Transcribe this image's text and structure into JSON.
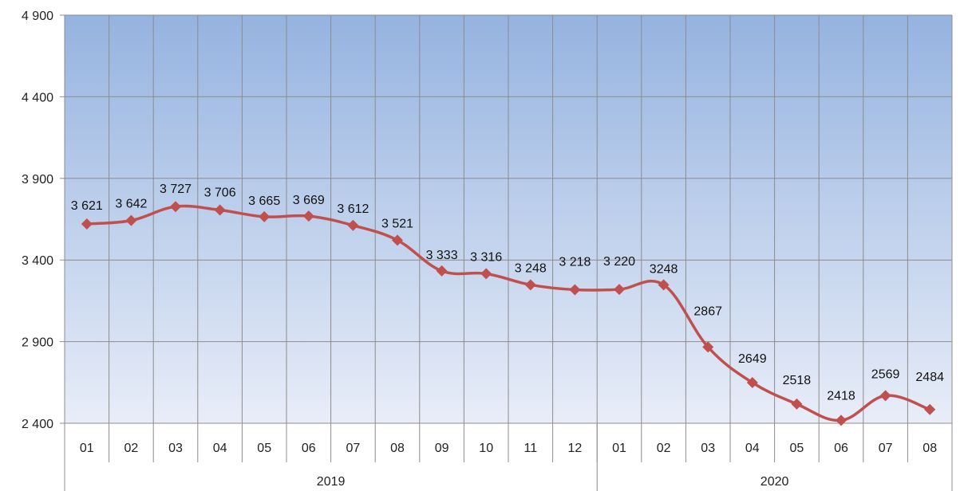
{
  "chart_data": {
    "type": "line",
    "title": "",
    "xlabel": "",
    "ylabel": "",
    "ylim": [
      2400,
      4900
    ],
    "yticks": [
      "2 400",
      "2 900",
      "3 400",
      "3 900",
      "4 400",
      "4 900"
    ],
    "ytick_values": [
      2400,
      2900,
      3400,
      3900,
      4400,
      4900
    ],
    "categories": [
      "01",
      "02",
      "03",
      "04",
      "05",
      "06",
      "07",
      "08",
      "09",
      "10",
      "11",
      "12",
      "01",
      "02",
      "03",
      "04",
      "05",
      "06",
      "07",
      "08"
    ],
    "groups": [
      {
        "label": "2019",
        "count": 12
      },
      {
        "label": "2020",
        "count": 8
      }
    ],
    "values": [
      3621,
      3642,
      3727,
      3706,
      3665,
      3669,
      3612,
      3521,
      3333,
      3316,
      3248,
      3218,
      3220,
      3248,
      2867,
      2649,
      2518,
      2418,
      2569,
      2484
    ],
    "data_labels": [
      "3 621",
      "3 642",
      "3 727",
      "3 706",
      "3 665",
      "3 669",
      "3 612",
      "3 521",
      "3 333",
      "3 316",
      "3 248",
      "3 218",
      "3 220",
      "3248",
      "2867",
      "2649",
      "2518",
      "2418",
      "2569",
      "2484"
    ],
    "grid": true,
    "colors": {
      "line": "#c0504d",
      "marker": "#c0504d",
      "bg_top": "#95b3e0",
      "bg_bottom": "#e8edf8",
      "grid": "#8c8c8c"
    }
  }
}
